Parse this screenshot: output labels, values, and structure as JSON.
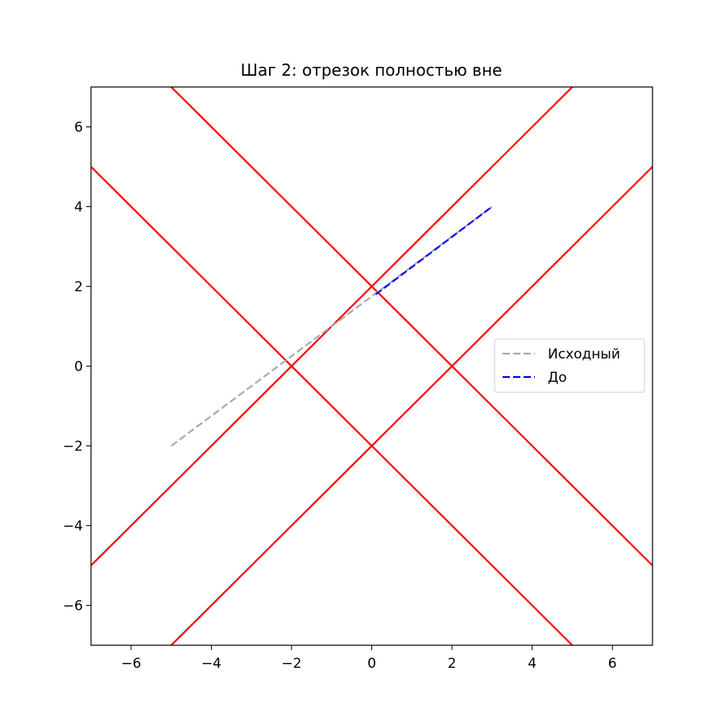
{
  "chart_data": {
    "type": "line",
    "title": "Шаг 2: отрезок полностью вне",
    "xlabel": "",
    "ylabel": "",
    "xlim": [
      -7,
      7
    ],
    "ylim": [
      -7,
      7
    ],
    "xticks": [
      -6,
      -4,
      -2,
      0,
      2,
      4,
      6
    ],
    "yticks": [
      -6,
      -4,
      -2,
      0,
      2,
      4,
      6
    ],
    "tick_labels_x": [
      "−6",
      "−4",
      "−2",
      "0",
      "2",
      "4",
      "6"
    ],
    "tick_labels_y": [
      "−6",
      "−4",
      "−2",
      "0",
      "2",
      "4",
      "6"
    ],
    "grid": false,
    "legend_position": "center-right",
    "boundary_lines": [
      {
        "x": [
          -7,
          7
        ],
        "y": [
          -5,
          9
        ],
        "color": "#ff0000"
      },
      {
        "x": [
          -7,
          7
        ],
        "y": [
          -9,
          5
        ],
        "color": "#ff0000"
      },
      {
        "x": [
          -7,
          7
        ],
        "y": [
          9,
          -5
        ],
        "color": "#ff0000"
      },
      {
        "x": [
          -7,
          7
        ],
        "y": [
          5,
          -9
        ],
        "color": "#ff0000"
      }
    ],
    "series": [
      {
        "name": "Исходный",
        "x": [
          -5,
          3
        ],
        "y": [
          -2,
          4
        ],
        "color": "#aaaaaa",
        "style": "dashed"
      },
      {
        "name": "До",
        "x": [
          0.1,
          3
        ],
        "y": [
          1.8,
          4
        ],
        "color": "#0000ff",
        "style": "dashed"
      }
    ]
  }
}
